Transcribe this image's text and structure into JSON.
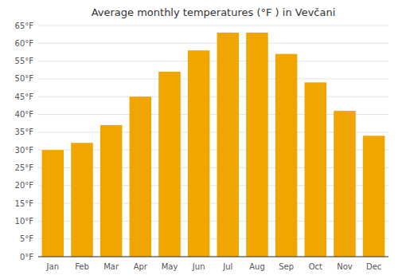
{
  "chart_data": {
    "type": "bar",
    "title": "Average monthly temperatures (°F ) in Vevčani",
    "categories": [
      "Jan",
      "Feb",
      "Mar",
      "Apr",
      "May",
      "Jun",
      "Jul",
      "Aug",
      "Sep",
      "Oct",
      "Nov",
      "Dec"
    ],
    "values": [
      30,
      32,
      37,
      45,
      52,
      58,
      63,
      63,
      57,
      49,
      41,
      34
    ],
    "color": "#F0A500",
    "ylim": [
      0,
      65
    ],
    "yticks": [
      {
        "value": 0,
        "label": "0°F"
      },
      {
        "value": 5,
        "label": "5°F"
      },
      {
        "value": 10,
        "label": "10°F"
      },
      {
        "value": 15,
        "label": "15°F"
      },
      {
        "value": 20,
        "label": "20°F"
      },
      {
        "value": 25,
        "label": "25°F"
      },
      {
        "value": 30,
        "label": "30°F"
      },
      {
        "value": 35,
        "label": "35°F"
      },
      {
        "value": 40,
        "label": "40°F"
      },
      {
        "value": 45,
        "label": "45°F"
      },
      {
        "value": 50,
        "label": "50°F"
      },
      {
        "value": 55,
        "label": "55°F"
      },
      {
        "value": 60,
        "label": "60°F"
      },
      {
        "value": 65,
        "label": "65°F"
      }
    ],
    "grid": true
  }
}
